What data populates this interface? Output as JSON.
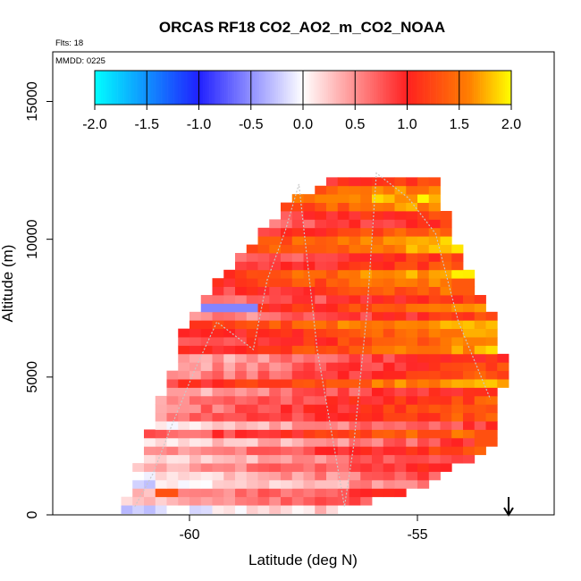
{
  "chart_data": {
    "type": "heatmap",
    "title": "ORCAS RF18 CO2_AO2_m_CO2_NOAA",
    "corner_labels": {
      "flights": "Flts: 18",
      "date": "MMDD: 0225"
    },
    "xlabel": "Latitude (deg N)",
    "ylabel": "Altitude (m)",
    "xlim": [
      -63.0,
      -52.0
    ],
    "ylim": [
      0,
      16800
    ],
    "x_ticks": [
      {
        "value": -60,
        "label": "-60"
      },
      {
        "value": -55,
        "label": "-55"
      }
    ],
    "y_ticks": [
      {
        "value": 0,
        "label": "0"
      },
      {
        "value": 5000,
        "label": "5000"
      },
      {
        "value": 10000,
        "label": "10000"
      },
      {
        "value": 15000,
        "label": "15000"
      }
    ],
    "colorbar": {
      "min": -2.0,
      "max": 2.0,
      "ticks": [
        {
          "value": -2.0,
          "label": "-2.0"
        },
        {
          "value": -1.5,
          "label": "-1.5"
        },
        {
          "value": -1.0,
          "label": "-1.0"
        },
        {
          "value": -0.5,
          "label": "-0.5"
        },
        {
          "value": 0.0,
          "label": "0.0"
        },
        {
          "value": 0.5,
          "label": "0.5"
        },
        {
          "value": 1.0,
          "label": "1.0"
        },
        {
          "value": 1.5,
          "label": "1.5"
        },
        {
          "value": 2.0,
          "label": "2.0"
        }
      ],
      "stops": [
        {
          "value": -2.0,
          "color": "#00ffff"
        },
        {
          "value": -1.0,
          "color": "#2020ff"
        },
        {
          "value": 0.0,
          "color": "#ffffff"
        },
        {
          "value": 1.0,
          "color": "#ff2020"
        },
        {
          "value": 1.6,
          "color": "#ff8000"
        },
        {
          "value": 2.0,
          "color": "#ffff00"
        }
      ]
    },
    "grid": {
      "cell_width_deg": 0.25,
      "cell_height_m": 305,
      "envelope": [
        {
          "alt": 200,
          "lat_min": -61.5,
          "lat_max": -56.8
        },
        {
          "alt": 1000,
          "lat_min": -61.3,
          "lat_max": -55.0
        },
        {
          "alt": 2500,
          "lat_min": -61.0,
          "lat_max": -53.5
        },
        {
          "alt": 4000,
          "lat_min": -60.7,
          "lat_max": -53.3
        },
        {
          "alt": 5500,
          "lat_min": -60.3,
          "lat_max": -53.2
        },
        {
          "alt": 7000,
          "lat_min": -60.1,
          "lat_max": -53.4
        },
        {
          "alt": 8500,
          "lat_min": -59.4,
          "lat_max": -53.9
        },
        {
          "alt": 10000,
          "lat_min": -58.5,
          "lat_max": -54.3
        },
        {
          "alt": 11500,
          "lat_min": -57.8,
          "lat_max": -54.6
        },
        {
          "alt": 12300,
          "lat_min": -56.6,
          "lat_max": -54.8
        }
      ],
      "value_trend": {
        "base": 0.35,
        "lat_gradient_per_deg": 0.12,
        "alt_gradient_per_km": 0.05,
        "reference_lat": -60.0
      },
      "anomalies": [
        {
          "lat": -59.5,
          "alt": 7500,
          "lat_halfwidth": 0.9,
          "alt_halfwidth": 250,
          "value": -0.55
        },
        {
          "lat": -53.9,
          "alt": 6700,
          "lat_halfwidth": 0.15,
          "alt_halfwidth": 200,
          "value": 1.75
        },
        {
          "lat": -54.0,
          "alt": 8300,
          "lat_halfwidth": 0.35,
          "alt_halfwidth": 300,
          "value": 1.35
        },
        {
          "lat": -53.6,
          "alt": 2800,
          "lat_halfwidth": 0.3,
          "alt_halfwidth": 300,
          "value": 1.3
        },
        {
          "lat": -60.6,
          "alt": 900,
          "lat_halfwidth": 0.3,
          "alt_halfwidth": 200,
          "value": 1.3
        }
      ]
    },
    "flight_track": [
      [
        -61.2,
        300
      ],
      [
        -60.8,
        1500
      ],
      [
        -60.4,
        3200
      ],
      [
        -59.9,
        5200
      ],
      [
        -59.4,
        7000
      ],
      [
        -58.6,
        6000
      ],
      [
        -58.3,
        8500
      ],
      [
        -57.9,
        10300
      ],
      [
        -57.6,
        12000
      ],
      [
        -57.2,
        6000
      ],
      [
        -56.6,
        300
      ],
      [
        -56.4,
        2500
      ],
      [
        -56.1,
        7500
      ],
      [
        -55.9,
        12400
      ],
      [
        -55.2,
        11500
      ],
      [
        -54.6,
        10200
      ],
      [
        -54.1,
        7000
      ],
      [
        -53.4,
        4200
      ]
    ],
    "arrow_marker": {
      "lat": -53.0,
      "direction": "down"
    }
  }
}
